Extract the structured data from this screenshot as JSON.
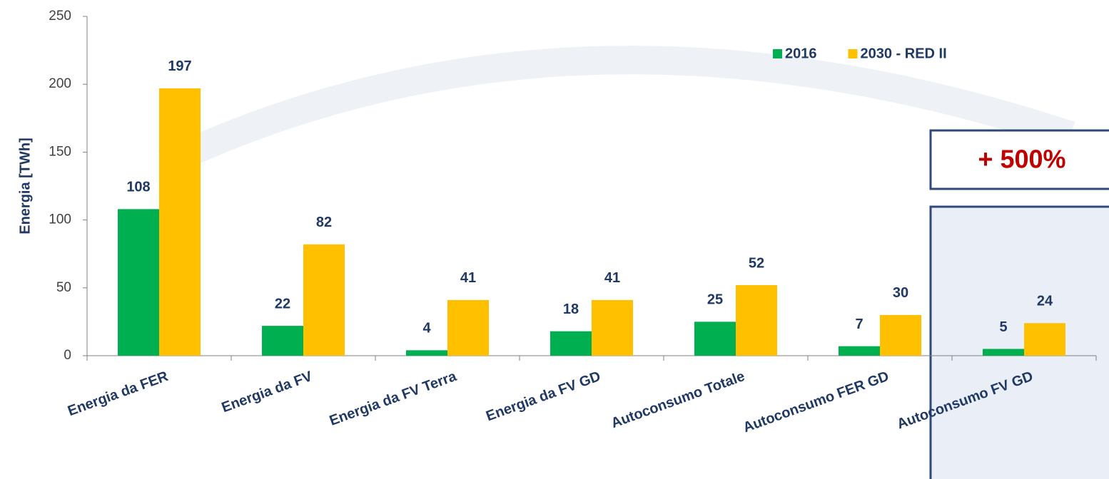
{
  "chart_data": {
    "type": "bar",
    "y_label": "Energia [TWh]",
    "categories": [
      "Energia da FER",
      "Energia da FV",
      "Energia da FV Terra",
      "Energia da FV GD",
      "Autoconsumo Totale",
      "Autoconsumo FER GD",
      "Autoconsumo FV GD"
    ],
    "series": [
      {
        "name": "2016",
        "color": "#00b050",
        "values": [
          108,
          22,
          4,
          18,
          25,
          7,
          5
        ]
      },
      {
        "name": "2030 - RED II",
        "color": "#ffc000",
        "values": [
          197,
          82,
          41,
          41,
          52,
          30,
          24
        ]
      }
    ],
    "ylim": [
      0,
      250
    ],
    "yticks": [
      0,
      50,
      100,
      150,
      200,
      250
    ],
    "legend": "top-right",
    "annotation": "+ 500%"
  }
}
